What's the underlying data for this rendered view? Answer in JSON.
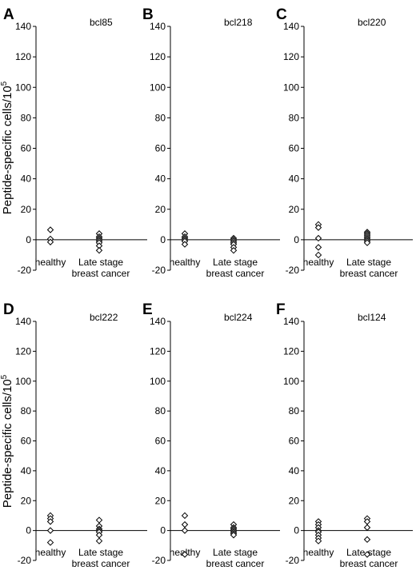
{
  "figure": {
    "ylabel": "Peptide-specific cells/10",
    "ylabel_sup": "5"
  },
  "chart_data": [
    {
      "type": "scatter",
      "panel": "A",
      "title": "bcl85",
      "categories": [
        "healthy",
        "Late stage\nbreast cancer"
      ],
      "ylim": [
        -20,
        140
      ],
      "yticks": [
        140,
        120,
        100,
        80,
        60,
        40,
        20,
        0,
        -20
      ],
      "series": [
        {
          "values": [
            [
              6.5,
              0.5,
              -1.5
            ],
            [
              4,
              2,
              1,
              0,
              -1,
              -2,
              -4,
              -7
            ]
          ]
        }
      ]
    },
    {
      "type": "scatter",
      "panel": "B",
      "title": "bcl218",
      "categories": [
        "healthy",
        "Late stage\nbreast cancer"
      ],
      "ylim": [
        -20,
        140
      ],
      "yticks": [
        140,
        120,
        100,
        80,
        60,
        40,
        20,
        0,
        -20
      ],
      "series": [
        {
          "values": [
            [
              4,
              2,
              1,
              0,
              -1,
              -3
            ],
            [
              1,
              0,
              -1,
              -2,
              -3,
              -5,
              -7
            ]
          ]
        }
      ]
    },
    {
      "type": "scatter",
      "panel": "C",
      "title": "bcl220",
      "categories": [
        "healthy",
        "Late stage\nbreast cancer"
      ],
      "ylim": [
        -20,
        140
      ],
      "yticks": [
        140,
        120,
        100,
        80,
        60,
        40,
        20,
        0,
        -20
      ],
      "series": [
        {
          "values": [
            [
              10,
              8,
              1,
              -5,
              -10
            ],
            [
              5,
              4,
              3,
              2,
              1,
              0,
              -1,
              -2
            ]
          ]
        }
      ]
    },
    {
      "type": "scatter",
      "panel": "D",
      "title": "bcl222",
      "categories": [
        "healthy",
        "Late stage\nbreast cancer"
      ],
      "ylim": [
        -20,
        140
      ],
      "yticks": [
        140,
        120,
        100,
        80,
        60,
        40,
        20,
        0,
        -20
      ],
      "series": [
        {
          "values": [
            [
              10,
              8,
              6,
              0,
              -8
            ],
            [
              7,
              3,
              1,
              0,
              -1,
              -3,
              -7
            ]
          ]
        }
      ]
    },
    {
      "type": "scatter",
      "panel": "E",
      "title": "bcl224",
      "categories": [
        "healthy",
        "Late stage\nbreast cancer"
      ],
      "ylim": [
        -20,
        140
      ],
      "yticks": [
        140,
        120,
        100,
        80,
        60,
        40,
        20,
        0,
        -20
      ],
      "series": [
        {
          "values": [
            [
              10,
              4,
              0,
              -16
            ],
            [
              4,
              2,
              1,
              0,
              -1,
              -2,
              -3
            ]
          ]
        }
      ]
    },
    {
      "type": "scatter",
      "panel": "F",
      "title": "bcl124",
      "categories": [
        "healthy",
        "Late stage\nbreast cancer"
      ],
      "ylim": [
        -20,
        140
      ],
      "yticks": [
        140,
        120,
        100,
        80,
        60,
        40,
        20,
        0,
        -20
      ],
      "series": [
        {
          "values": [
            [
              6,
              4,
              2,
              0,
              -1,
              -3,
              -5,
              -7
            ],
            [
              8,
              6,
              2,
              -6,
              -16
            ]
          ]
        }
      ]
    }
  ]
}
